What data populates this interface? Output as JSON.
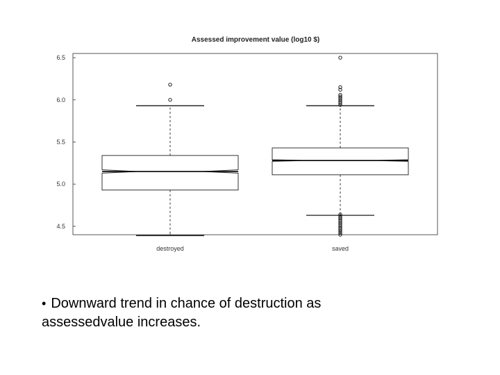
{
  "slide": {
    "bullet_symbol": "•",
    "bullet_text_line1": "Downward trend in chance of destruction as",
    "bullet_text_line2": "assessedvalue increases."
  },
  "chart_data": {
    "type": "boxplot",
    "title": "Assessed improvement value (log10 $)",
    "xlabel": "",
    "ylabel": "",
    "categories": [
      "destroyed",
      "saved"
    ],
    "ylim": [
      4.4,
      6.55
    ],
    "y_ticks": [
      4.5,
      5.0,
      5.5,
      6.0,
      6.5
    ],
    "y_tick_labels": [
      "4.5",
      "5.0",
      "5.5",
      "6.0",
      "6.5"
    ],
    "notched": true,
    "grid": false,
    "boxes": [
      {
        "name": "destroyed",
        "whisker_low": 4.39,
        "q1": 4.93,
        "notch_low": 5.13,
        "median": 5.15,
        "notch_high": 5.17,
        "q3": 5.34,
        "whisker_high": 5.93,
        "outliers": [
          6.0,
          6.18
        ]
      },
      {
        "name": "saved",
        "whisker_low": 4.63,
        "q1": 5.11,
        "notch_low": 5.27,
        "median": 5.28,
        "notch_high": 5.29,
        "q3": 5.43,
        "whisker_high": 5.93,
        "outliers": [
          4.4,
          4.42,
          4.44,
          4.46,
          4.48,
          4.5,
          4.52,
          4.54,
          4.56,
          4.58,
          4.6,
          4.62,
          4.64,
          5.94,
          5.96,
          5.98,
          6.0,
          6.02,
          6.04,
          6.06,
          6.12,
          6.15,
          6.5
        ]
      }
    ],
    "colors": {
      "box_stroke": "#333333",
      "median": "#000000",
      "frame": "#555555"
    }
  }
}
